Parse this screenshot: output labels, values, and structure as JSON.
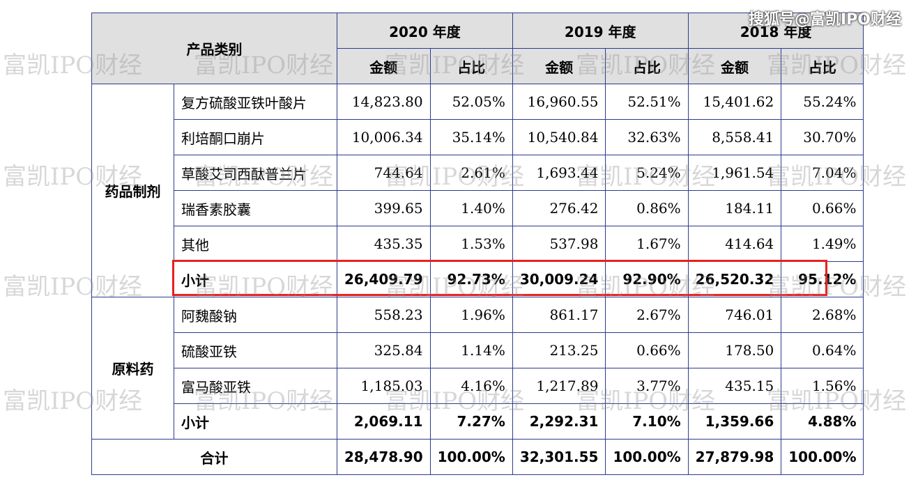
{
  "source_label": "搜狐号@富凯IPO财经",
  "watermark": "富凯IPO财经",
  "table": {
    "header_category": "产品类别",
    "years": [
      "2020 年度",
      "2019 年度",
      "2018 年度"
    ],
    "col_amount": "金额",
    "col_ratio": "占比",
    "group1": {
      "label": "药品制剂",
      "rows": [
        {
          "name": "复方硫酸亚铁叶酸片",
          "v": [
            "14,823.80",
            "52.05%",
            "16,960.55",
            "52.51%",
            "15,401.62",
            "55.24%"
          ]
        },
        {
          "name": "利培酮口崩片",
          "v": [
            "10,006.34",
            "35.14%",
            "10,540.84",
            "32.63%",
            "8,558.41",
            "30.70%"
          ]
        },
        {
          "name": "草酸艾司西酞普兰片",
          "v": [
            "744.64",
            "2.61%",
            "1,693.44",
            "5.24%",
            "1,961.54",
            "7.04%"
          ]
        },
        {
          "name": "瑞香素胶囊",
          "v": [
            "399.65",
            "1.40%",
            "276.42",
            "0.86%",
            "184.11",
            "0.66%"
          ]
        },
        {
          "name": "其他",
          "v": [
            "435.35",
            "1.53%",
            "537.98",
            "1.67%",
            "414.64",
            "1.49%"
          ]
        }
      ],
      "subtotal": {
        "name": "小计",
        "v": [
          "26,409.79",
          "92.73%",
          "30,009.24",
          "92.90%",
          "26,520.32",
          "95.12%"
        ]
      }
    },
    "group2": {
      "label": "原料药",
      "rows": [
        {
          "name": "阿魏酸钠",
          "v": [
            "558.23",
            "1.96%",
            "861.17",
            "2.67%",
            "746.01",
            "2.68%"
          ]
        },
        {
          "name": "硫酸亚铁",
          "v": [
            "325.84",
            "1.14%",
            "213.25",
            "0.66%",
            "178.50",
            "0.64%"
          ]
        },
        {
          "name": "富马酸亚铁",
          "v": [
            "1,185.03",
            "4.16%",
            "1,217.89",
            "3.77%",
            "435.15",
            "1.56%"
          ]
        }
      ],
      "subtotal": {
        "name": "小计",
        "v": [
          "2,069.11",
          "7.27%",
          "2,292.31",
          "7.10%",
          "1,359.66",
          "4.88%"
        ]
      }
    },
    "total": {
      "name": "合计",
      "v": [
        "28,478.90",
        "100.00%",
        "32,301.55",
        "100.00%",
        "27,879.98",
        "100.00%"
      ]
    }
  }
}
